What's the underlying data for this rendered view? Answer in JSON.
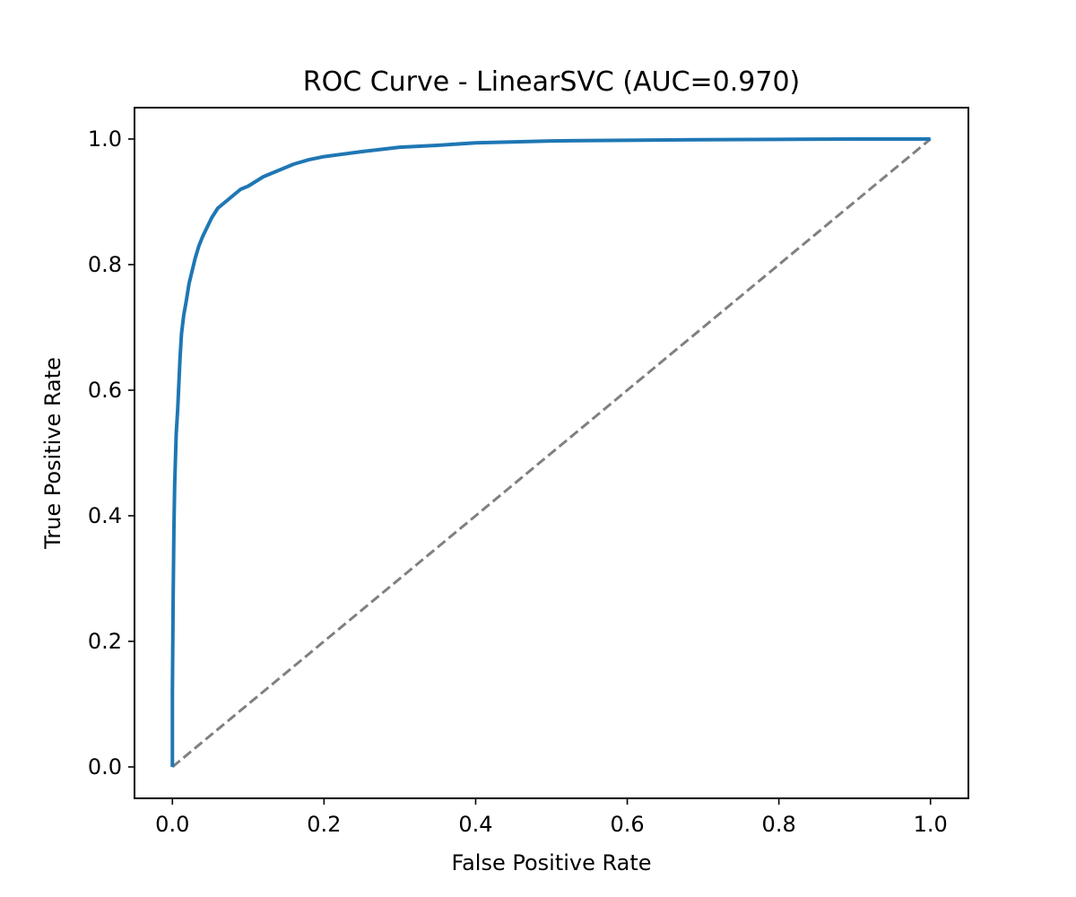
{
  "chart_data": {
    "type": "line",
    "title": "ROC Curve - LinearSVC (AUC=0.970)",
    "xlabel": "False Positive Rate",
    "ylabel": "True Positive Rate",
    "xlim": [
      -0.05,
      1.05
    ],
    "ylim": [
      -0.05,
      1.05
    ],
    "xticks": [
      {
        "value": 0.0,
        "label": "0.0"
      },
      {
        "value": 0.2,
        "label": "0.2"
      },
      {
        "value": 0.4,
        "label": "0.4"
      },
      {
        "value": 0.6,
        "label": "0.6"
      },
      {
        "value": 0.8,
        "label": "0.8"
      },
      {
        "value": 1.0,
        "label": "1.0"
      }
    ],
    "yticks": [
      {
        "value": 0.0,
        "label": "0.0"
      },
      {
        "value": 0.2,
        "label": "0.2"
      },
      {
        "value": 0.4,
        "label": "0.4"
      },
      {
        "value": 0.6,
        "label": "0.6"
      },
      {
        "value": 0.8,
        "label": "0.8"
      },
      {
        "value": 1.0,
        "label": "1.0"
      }
    ],
    "grid": false,
    "series": [
      {
        "color": "#1f77b4",
        "style": "solid",
        "x": [
          0.0,
          0.0,
          0.001,
          0.002,
          0.003,
          0.005,
          0.007,
          0.01,
          0.012,
          0.015,
          0.018,
          0.022,
          0.026,
          0.03,
          0.035,
          0.04,
          0.046,
          0.052,
          0.06,
          0.07,
          0.08,
          0.09,
          0.1,
          0.12,
          0.14,
          0.16,
          0.18,
          0.2,
          0.25,
          0.3,
          0.35,
          0.4,
          0.5,
          0.6,
          0.7,
          0.8,
          0.9,
          1.0
        ],
        "y": [
          0.0,
          0.12,
          0.27,
          0.38,
          0.45,
          0.53,
          0.57,
          0.65,
          0.69,
          0.72,
          0.74,
          0.77,
          0.79,
          0.81,
          0.83,
          0.845,
          0.86,
          0.875,
          0.89,
          0.9,
          0.91,
          0.92,
          0.925,
          0.94,
          0.95,
          0.96,
          0.967,
          0.972,
          0.98,
          0.987,
          0.99,
          0.994,
          0.997,
          0.998,
          0.999,
          0.9995,
          1.0,
          1.0
        ]
      },
      {
        "color": "#808080",
        "style": "dashed",
        "x": [
          0.0,
          1.0
        ],
        "y": [
          0.0,
          1.0
        ]
      }
    ]
  }
}
